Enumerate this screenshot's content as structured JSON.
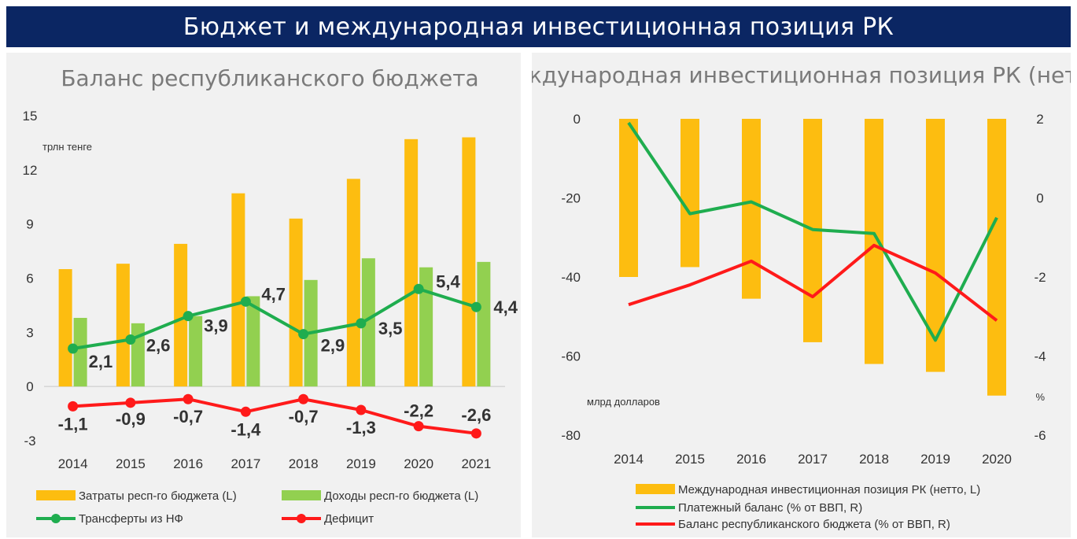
{
  "page_title": "Бюджет и международная инвестиционная позиция РК",
  "colors": {
    "banner": "#0b2663",
    "expenses": "#fdbd10",
    "revenues": "#92d050",
    "transfers": "#1fad4f",
    "deficit": "#ff1a1a"
  },
  "chart_data": [
    {
      "type": "bar",
      "title": "Баланс республиканского бюджета",
      "ylabel": "трлн тенге",
      "ylim": [
        -3,
        15
      ],
      "yticks": [
        "15",
        "12",
        "9",
        "6",
        "3",
        "0",
        "-3"
      ],
      "categories": [
        "2014",
        "2015",
        "2016",
        "2017",
        "2018",
        "2019",
        "2020",
        "2021"
      ],
      "bar_series": [
        {
          "name": "Затраты респ-го бюджета (L)",
          "values": [
            6.5,
            6.8,
            7.9,
            10.7,
            9.3,
            11.5,
            13.7,
            13.8
          ]
        },
        {
          "name": "Доходы респ-го бюджета (L)",
          "values": [
            3.8,
            3.5,
            3.9,
            5.0,
            5.9,
            7.1,
            6.6,
            6.9
          ]
        }
      ],
      "line_series": [
        {
          "name": "Трансферты из НФ",
          "values": [
            2.1,
            2.6,
            3.9,
            4.7,
            2.9,
            3.5,
            5.4,
            4.4
          ],
          "labels": [
            "2,1",
            "2,6",
            "3,9",
            "4,7",
            "2,9",
            "3,5",
            "5,4",
            "4,4"
          ]
        },
        {
          "name": "Дефицит",
          "values": [
            -1.1,
            -0.9,
            -0.7,
            -1.4,
            -0.7,
            -1.3,
            -2.2,
            -2.6
          ],
          "labels": [
            "-1,1",
            "-0,9",
            "-0,7",
            "-1,4",
            "-0,7",
            "-1,3",
            "-2,2",
            "-2,6"
          ]
        }
      ],
      "legend_position": "bottom"
    },
    {
      "type": "bar",
      "title": "Международная инвестиционная позиция РК (нетто)",
      "ylabel": "млрд долларов",
      "y2label": "%",
      "ylim": [
        -80,
        0
      ],
      "y2lim": [
        -6,
        2
      ],
      "yticks": [
        "0",
        "-20",
        "-40",
        "-60",
        "-80"
      ],
      "y2ticks": [
        "2",
        "0",
        "-2",
        "-4",
        "-6"
      ],
      "categories": [
        "2014",
        "2015",
        "2016",
        "2017",
        "2018",
        "2019",
        "2020"
      ],
      "bar_series": [
        {
          "name": "Международная инвестиционная позиция РК (нетто, L)",
          "values": [
            -40,
            -37.5,
            -45.5,
            -56.5,
            -62,
            -64,
            -70
          ]
        }
      ],
      "line_series": [
        {
          "name": "Платежный баланс (% от ВВП, R)",
          "values": [
            1.9,
            -0.4,
            -0.1,
            -0.8,
            -0.9,
            -3.6,
            -0.5
          ]
        },
        {
          "name": "Баланс республиканского бюджета (% от ВВП, R)",
          "values": [
            -2.7,
            -2.2,
            -1.6,
            -2.5,
            -1.2,
            -1.9,
            -3.1
          ]
        }
      ],
      "legend_position": "bottom"
    }
  ]
}
